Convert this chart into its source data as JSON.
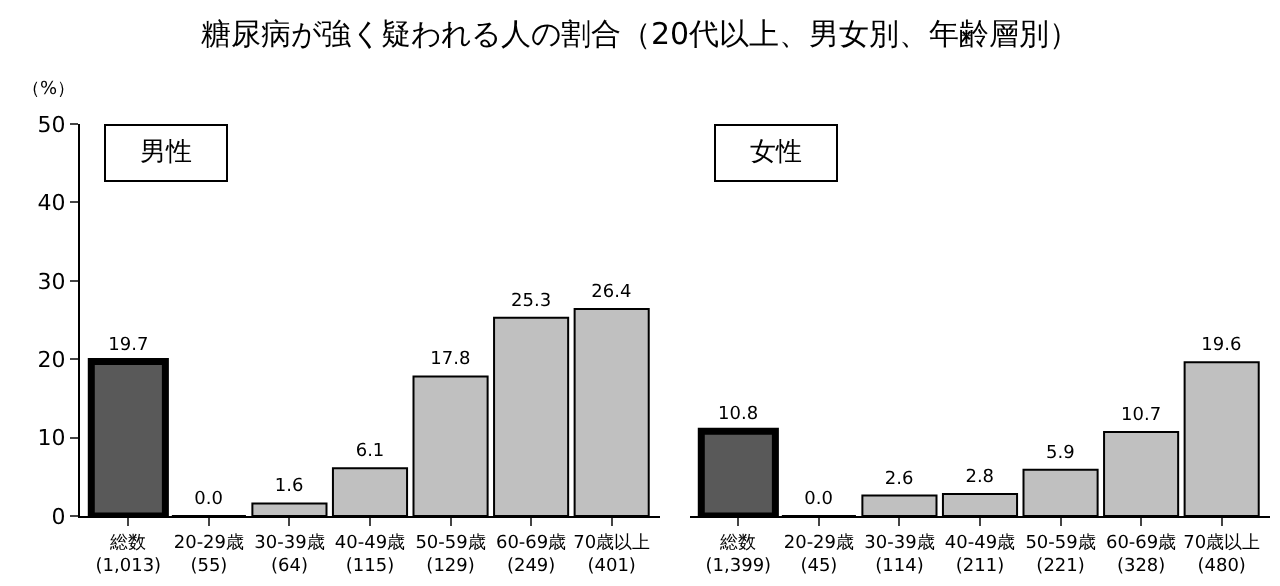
{
  "chart_data": [
    {
      "type": "bar",
      "title": "糖尿病が強く疑われる人の割合（20代以上、男女別、年齢層別）",
      "ylabel": "（%）",
      "annotations": [
        "男性"
      ],
      "categories": [
        "総数\n(1,013)",
        "20-29歳\n(55)",
        "30-39歳\n(64)",
        "40-49歳\n(115)",
        "50-59歳\n(129)",
        "60-69歳\n(249)",
        "70歳以上\n(401)"
      ],
      "values": [
        19.7,
        0.0,
        1.6,
        6.1,
        17.8,
        25.3,
        26.4
      ],
      "value_labels": [
        "19.7",
        "0.0",
        "1.6",
        "6.1",
        "17.8",
        "25.3",
        "26.4"
      ],
      "colors": [
        "#595959",
        "#c0c0c0",
        "#c0c0c0",
        "#c0c0c0",
        "#c0c0c0",
        "#c0c0c0",
        "#c0c0c0"
      ],
      "ylim": [
        0,
        50
      ],
      "yticks": [
        0,
        10,
        20,
        30,
        40,
        50
      ],
      "grid": false,
      "legend": false
    },
    {
      "type": "bar",
      "annotations": [
        "女性"
      ],
      "categories": [
        "総数\n(1,399)",
        "20-29歳\n(45)",
        "30-39歳\n(114)",
        "40-49歳\n(211)",
        "50-59歳\n(221)",
        "60-69歳\n(328)",
        "70歳以上\n(480)"
      ],
      "values": [
        10.8,
        0.0,
        2.6,
        2.8,
        5.9,
        10.7,
        19.6
      ],
      "value_labels": [
        "10.8",
        "0.0",
        "2.6",
        "2.8",
        "5.9",
        "10.7",
        "19.6"
      ],
      "colors": [
        "#595959",
        "#c0c0c0",
        "#c0c0c0",
        "#c0c0c0",
        "#c0c0c0",
        "#c0c0c0",
        "#c0c0c0"
      ],
      "ylim": [
        0,
        50
      ],
      "yticks": [
        0,
        10,
        20,
        30,
        40,
        50
      ],
      "grid": false,
      "legend": false,
      "tick_labels": "x"
    }
  ]
}
